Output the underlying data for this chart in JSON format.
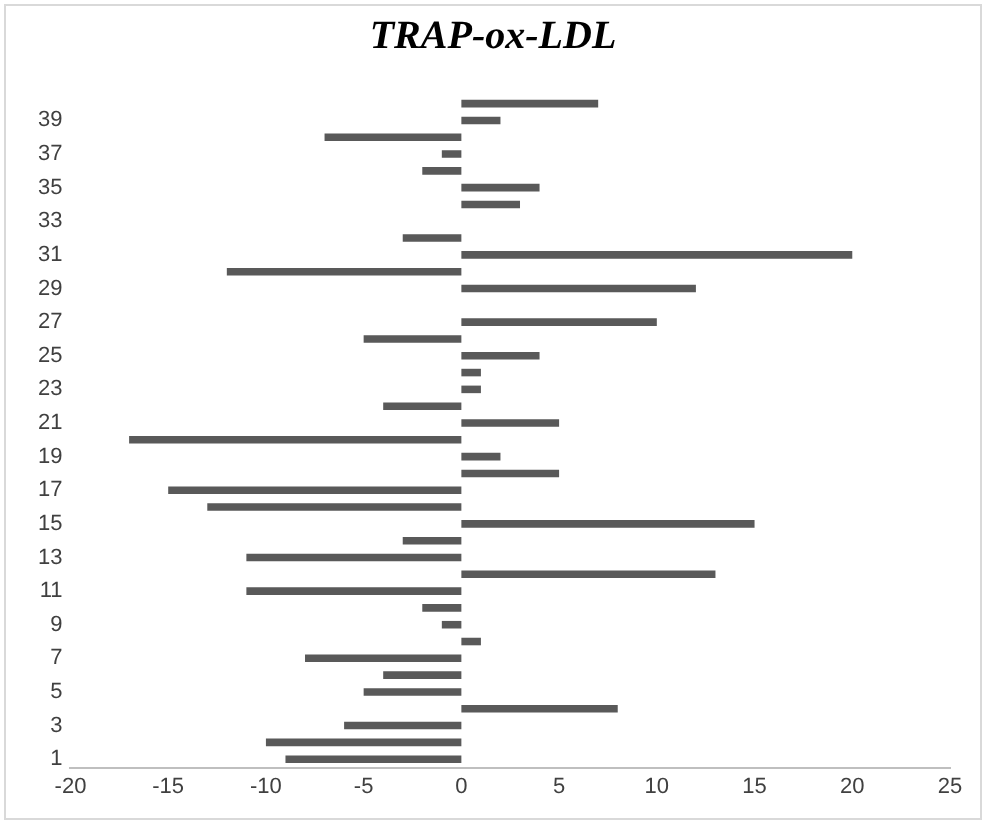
{
  "chart_data": {
    "type": "bar",
    "title": "TRAP-ox-LDL",
    "orientation": "horizontal",
    "categories": [
      null,
      "39",
      null,
      "37",
      null,
      "35",
      null,
      "33",
      null,
      "31",
      null,
      "29",
      null,
      "27",
      null,
      "25",
      null,
      "23",
      null,
      "21",
      null,
      "19",
      null,
      "17",
      null,
      "15",
      null,
      "13",
      null,
      "11",
      null,
      "9",
      null,
      "7",
      null,
      "5",
      null,
      "3",
      null,
      "1"
    ],
    "values": [
      7,
      2,
      -7,
      -1,
      -2,
      4,
      3,
      0,
      -3,
      20,
      -12,
      12,
      0,
      10,
      -5,
      4,
      1,
      1,
      -4,
      5,
      -17,
      2,
      5,
      -15,
      -13,
      15,
      -3,
      -11,
      13,
      -11,
      -2,
      -1,
      1,
      -8,
      -4,
      -5,
      8,
      -6,
      -10,
      -9
    ],
    "color": "#595959",
    "xlim": [
      -20,
      25
    ],
    "xticks": [
      -20,
      -15,
      -10,
      -5,
      0,
      5,
      10,
      15,
      20,
      25
    ],
    "grid": false,
    "legend": false
  }
}
